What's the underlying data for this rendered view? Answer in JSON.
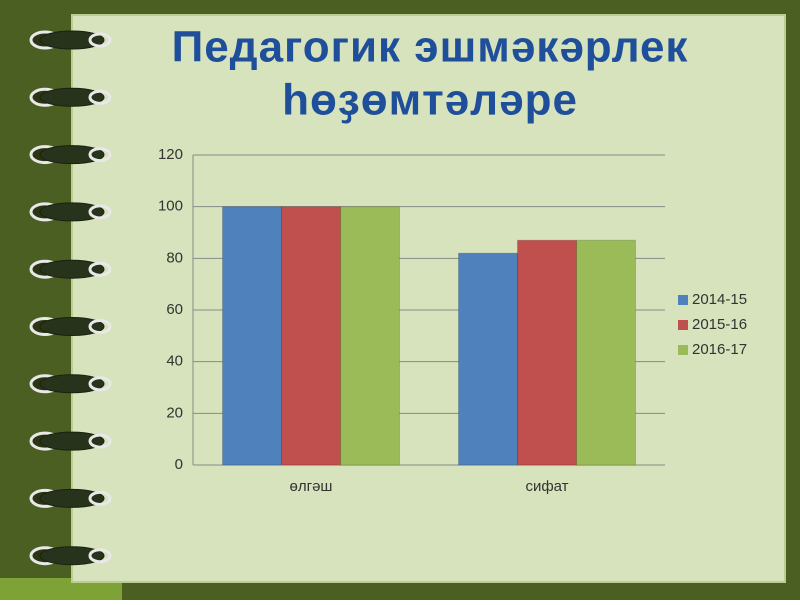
{
  "chart_data": {
    "type": "bar",
    "title": [
      "Педагогик эшмәкәрлек",
      "һөҙөмтәләре"
    ],
    "categories": [
      "өлгәш",
      "сифат"
    ],
    "series": [
      {
        "name": "2014-15",
        "color": "#4f81bd",
        "values": [
          100,
          82
        ]
      },
      {
        "name": "2015-16",
        "color": "#c0504d",
        "values": [
          100,
          87
        ]
      },
      {
        "name": "2016-17",
        "color": "#9bbb59",
        "values": [
          100,
          87
        ]
      }
    ],
    "ylim": [
      0,
      120
    ],
    "yticks": [
      0,
      20,
      40,
      60,
      80,
      100,
      120
    ],
    "grid": true,
    "legend": "right"
  }
}
